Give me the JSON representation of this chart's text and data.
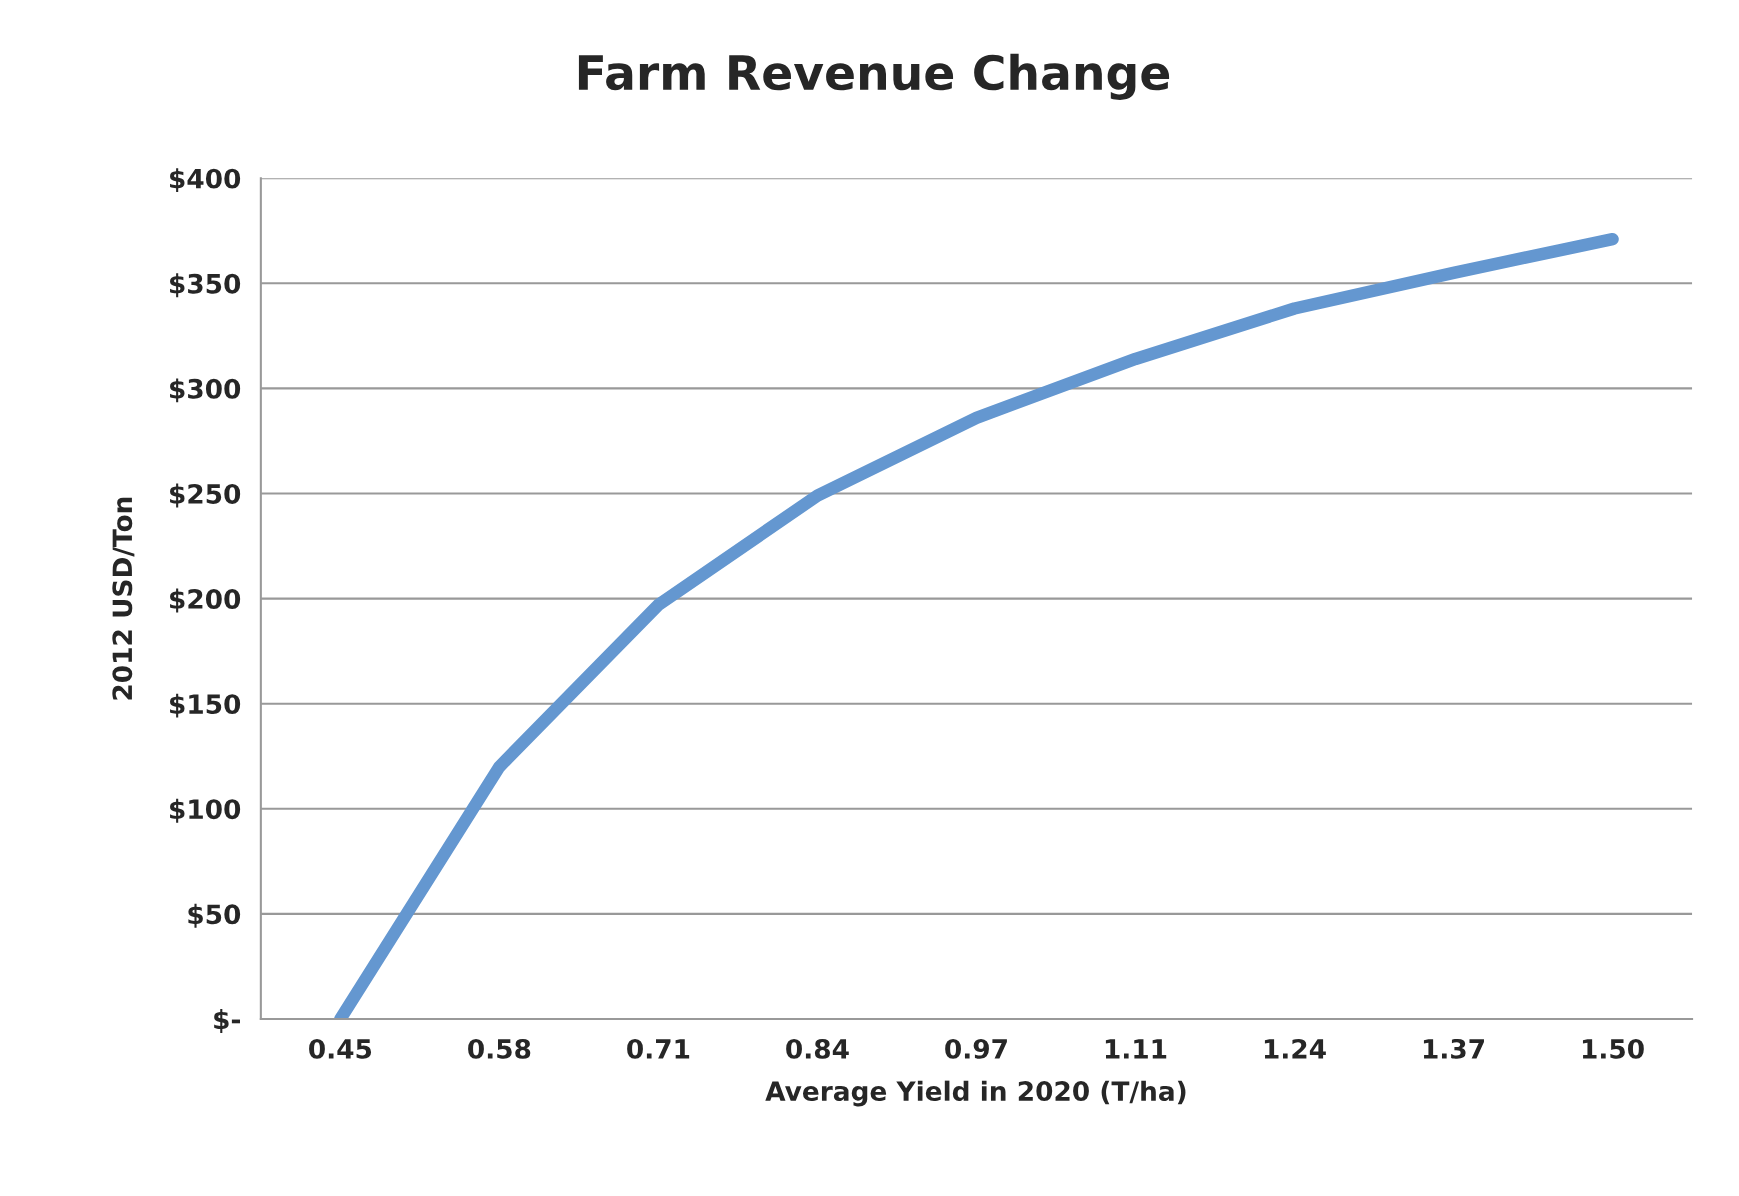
{
  "chart_data": {
    "type": "line",
    "title": "Farm Revenue Change",
    "xlabel": "Average Yield in 2020 (T/ha)",
    "ylabel": "2012 USD/Ton",
    "categories": [
      "0.45",
      "0.58",
      "0.71",
      "0.84",
      "0.97",
      "1.11",
      "1.24",
      "1.37",
      "1.50"
    ],
    "series": [
      {
        "color": "#6497d0",
        "values": [
          0,
          120,
          197,
          249,
          286,
          314,
          338,
          355,
          371
        ]
      }
    ],
    "ylim": [
      0,
      400
    ],
    "yticks": [
      {
        "value": 0,
        "label": "$-"
      },
      {
        "value": 50,
        "label": "$50"
      },
      {
        "value": 100,
        "label": "$100"
      },
      {
        "value": 150,
        "label": "$150"
      },
      {
        "value": 200,
        "label": "$200"
      },
      {
        "value": 250,
        "label": "$250"
      },
      {
        "value": 300,
        "label": "$300"
      },
      {
        "value": 350,
        "label": "$350"
      },
      {
        "value": 400,
        "label": "$400"
      }
    ],
    "grid": "y",
    "marker": "none",
    "line_style": "solid"
  }
}
